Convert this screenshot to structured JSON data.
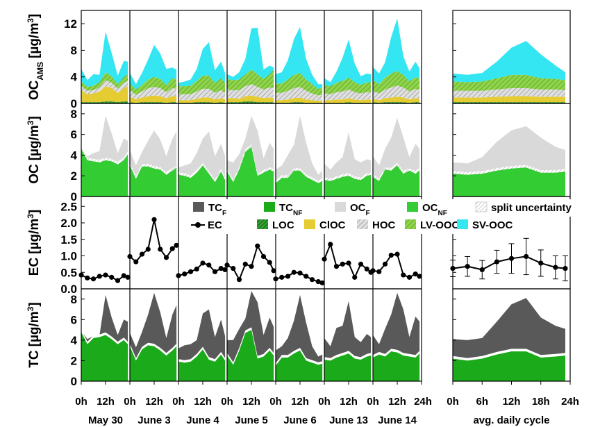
{
  "chart_data": {
    "type": "area",
    "colors": {
      "TC_F": "#595959",
      "TC_NF": "#1aaa1a",
      "OC_F": "#d9d9d9",
      "OC_NF": "#33cc33",
      "EC": "#000000",
      "LOC": "#1f6b1f",
      "ClOC": "#e6cc33",
      "HOC": "#bfbfbf",
      "LVOOC": "#7ccc3a",
      "SVOOC": "#33e6f2",
      "uncertainty": "#f2f2f2"
    },
    "days": [
      "May 30",
      "June 3",
      "June 4",
      "June 5",
      "June 6",
      "June 13",
      "June 14"
    ],
    "cycle_label": "avg. daily cycle",
    "x_ticks_day": [
      "0h",
      "12h"
    ],
    "x_tick_last": "24h",
    "x_ticks_cycle": [
      "0h",
      "6h",
      "12h",
      "18h",
      "24h"
    ],
    "panels": [
      {
        "id": "oc_ams",
        "ylabel": "OC",
        "ylabel_sub": "AMS",
        "ylabel_unit": "[µg/m",
        "ylabel_sup": "3",
        "ylabel_close": "]",
        "ylim": [
          0,
          14
        ],
        "yticks": [
          "0",
          "4",
          "8",
          "12"
        ]
      },
      {
        "id": "oc",
        "ylabel": "OC",
        "ylabel_unit": "[µg/m",
        "ylabel_sup": "3",
        "ylabel_close": "]",
        "ylim": [
          0,
          9
        ],
        "yticks": [
          "0",
          "2",
          "4",
          "6",
          "8"
        ]
      },
      {
        "id": "ec",
        "ylabel": "EC",
        "ylabel_unit": "[µg/m",
        "ylabel_sup": "3",
        "ylabel_close": "]",
        "ylim": [
          0,
          2.8
        ],
        "yticks": [
          "0.0",
          "0.5",
          "1.0",
          "1.5",
          "2.0",
          "2.5"
        ]
      },
      {
        "id": "tc",
        "ylabel": "TC",
        "ylabel_unit": "[µg/m",
        "ylabel_sup": "3",
        "ylabel_close": "]",
        "ylim": [
          0,
          9
        ],
        "yticks": [
          "0",
          "2",
          "4",
          "6",
          "8"
        ]
      }
    ],
    "legend": [
      {
        "key": "TC_F",
        "main": "TC",
        "sub": "F",
        "style": "fill"
      },
      {
        "key": "TC_NF",
        "main": "TC",
        "sub": "NF",
        "style": "fill"
      },
      {
        "key": "OC_F",
        "main": "OC",
        "sub": "F",
        "style": "fill"
      },
      {
        "key": "OC_NF",
        "main": "OC",
        "sub": "NF",
        "style": "fill"
      },
      {
        "key": "uncertainty",
        "main": "split uncertainty",
        "sub": "",
        "style": "hatch"
      },
      {
        "key": "EC",
        "main": "EC",
        "sub": "",
        "style": "line"
      },
      {
        "key": "LOC",
        "main": "LOC",
        "sub": "",
        "style": "hatch-dark"
      },
      {
        "key": "ClOC",
        "main": "ClOC",
        "sub": "",
        "style": "fill"
      },
      {
        "key": "HOC",
        "main": "HOC",
        "sub": "",
        "style": "hatch"
      },
      {
        "key": "LVOOC",
        "main": "LV-OOC",
        "sub": "",
        "style": "hatch-green"
      },
      {
        "key": "SVOOC",
        "main": "SV-OOC",
        "sub": "",
        "style": "fill"
      }
    ],
    "day_x_hours": [
      0,
      3,
      6,
      9,
      12,
      15,
      18,
      21,
      23
    ],
    "daily": [
      {
        "day": "May 30",
        "TC_NF": [
          4.8,
          3.6,
          4.2,
          4.3,
          4.5,
          4.1,
          3.6,
          4.0,
          3.6
        ],
        "TC_total": [
          4.9,
          4.1,
          4.4,
          4.5,
          8.4,
          6.2,
          4.5,
          6.0,
          5.8
        ],
        "OC_NF": [
          4.6,
          3.5,
          3.4,
          3.3,
          3.5,
          3.4,
          3.1,
          3.5,
          4.1
        ],
        "OC_total": [
          4.7,
          3.9,
          4.2,
          4.4,
          7.8,
          6.1,
          4.2,
          5.6,
          5.4
        ],
        "EC": [
          0.42,
          0.33,
          0.3,
          0.38,
          0.42,
          0.35,
          0.25,
          0.4,
          0.35
        ],
        "LOC": [
          0.2,
          0.2,
          0.2,
          0.2,
          0.3,
          0.3,
          0.2,
          0.3,
          0.3
        ],
        "ClOC": [
          1.8,
          1.2,
          1.3,
          1.6,
          2.3,
          2.0,
          1.4,
          2.0,
          2.3
        ],
        "HOC": [
          0.6,
          0.5,
          0.5,
          0.6,
          0.9,
          0.8,
          0.6,
          0.8,
          0.8
        ],
        "LVOOC": [
          0.7,
          0.6,
          0.7,
          0.8,
          1.2,
          1.0,
          0.7,
          0.9,
          1.0
        ],
        "SVOOC": [
          1.9,
          1.0,
          1.7,
          1.1,
          6.1,
          3.5,
          1.3,
          2.4,
          1.9
        ]
      },
      {
        "day": "June 3",
        "TC_NF": [
          3.4,
          2.0,
          3.1,
          3.5,
          3.4,
          3.0,
          2.5,
          3.0,
          3.4
        ],
        "TC_total": [
          4.7,
          3.3,
          4.8,
          6.5,
          8.6,
          6.7,
          4.2,
          6.5,
          7.4
        ],
        "OC_NF": [
          3.0,
          1.7,
          2.9,
          2.9,
          2.7,
          2.6,
          2.1,
          2.5,
          2.8
        ],
        "OC_total": [
          4.5,
          3.0,
          4.3,
          5.4,
          6.4,
          5.5,
          3.9,
          5.6,
          6.3
        ],
        "EC": [
          0.98,
          0.82,
          1.05,
          1.2,
          2.1,
          1.2,
          0.95,
          1.22,
          1.32
        ],
        "LOC": [
          0.2,
          0.1,
          0.2,
          0.2,
          0.2,
          0.2,
          0.1,
          0.2,
          0.2
        ],
        "ClOC": [
          0.8,
          0.5,
          0.7,
          0.9,
          1.0,
          0.9,
          0.7,
          0.9,
          0.9
        ],
        "HOC": [
          1.0,
          0.7,
          0.9,
          1.2,
          1.3,
          1.2,
          0.9,
          1.2,
          1.1
        ],
        "LVOOC": [
          1.0,
          0.8,
          1.0,
          1.3,
          1.5,
          1.4,
          1.1,
          1.5,
          1.4
        ],
        "SVOOC": [
          1.6,
          0.8,
          1.8,
          3.0,
          4.8,
          3.8,
          2.4,
          1.6,
          1.5
        ]
      },
      {
        "day": "June 4",
        "TC_NF": [
          1.9,
          1.8,
          1.9,
          2.4,
          3.1,
          2.1,
          1.9,
          2.6,
          2.0
        ],
        "TC_total": [
          3.2,
          3.5,
          3.6,
          4.0,
          6.6,
          7.0,
          4.3,
          6.0,
          4.4
        ],
        "OC_NF": [
          2.1,
          2.0,
          1.8,
          2.3,
          3.0,
          2.2,
          1.4,
          2.4,
          1.6
        ],
        "OC_total": [
          2.8,
          3.0,
          3.2,
          4.2,
          5.6,
          6.3,
          3.9,
          5.1,
          3.9
        ],
        "EC": [
          0.4,
          0.45,
          0.52,
          0.6,
          0.78,
          0.72,
          0.52,
          0.62,
          0.58
        ],
        "LOC": [
          0.1,
          0.1,
          0.1,
          0.2,
          0.2,
          0.2,
          0.1,
          0.2,
          0.1
        ],
        "ClOC": [
          0.4,
          0.4,
          0.4,
          0.5,
          0.7,
          0.7,
          0.5,
          0.6,
          0.5
        ],
        "HOC": [
          0.9,
          0.9,
          0.9,
          1.1,
          1.3,
          1.3,
          1.0,
          1.2,
          1.0
        ],
        "LVOOC": [
          1.2,
          1.2,
          1.3,
          1.6,
          2.0,
          2.0,
          1.5,
          1.8,
          1.5
        ],
        "SVOOC": [
          0.5,
          0.7,
          0.9,
          1.8,
          4.0,
          5.0,
          1.9,
          2.5,
          1.5
        ]
      },
      {
        "day": "June 5",
        "TC_NF": [
          2.5,
          1.6,
          3.0,
          4.7,
          5.0,
          2.2,
          2.4,
          3.0,
          2.5
        ],
        "TC_total": [
          4.0,
          4.0,
          5.1,
          6.1,
          8.8,
          7.7,
          4.5,
          6.2,
          5.3
        ],
        "OC_NF": [
          2.4,
          1.4,
          2.6,
          4.3,
          4.8,
          2.0,
          2.3,
          2.6,
          2.4
        ],
        "OC_total": [
          3.5,
          3.3,
          4.1,
          5.6,
          7.8,
          6.4,
          3.7,
          5.2,
          4.6
        ],
        "EC": [
          0.72,
          0.62,
          0.28,
          0.75,
          0.68,
          1.3,
          0.98,
          0.8,
          0.55
        ],
        "LOC": [
          0.2,
          0.2,
          0.2,
          0.3,
          0.3,
          0.2,
          0.2,
          0.2,
          0.2
        ],
        "ClOC": [
          0.6,
          0.6,
          0.5,
          0.8,
          0.9,
          0.8,
          0.6,
          0.7,
          0.6
        ],
        "HOC": [
          1.3,
          1.2,
          1.3,
          1.5,
          1.7,
          1.5,
          1.3,
          1.5,
          1.5
        ],
        "LVOOC": [
          1.6,
          1.5,
          1.6,
          1.8,
          2.2,
          1.9,
          1.6,
          2.0,
          2.8
        ],
        "SVOOC": [
          0.7,
          0.5,
          1.1,
          2.3,
          6.2,
          7.0,
          1.4,
          1.3,
          0.3
        ]
      },
      {
        "day": "June 6",
        "TC_NF": [
          1.5,
          2.3,
          2.3,
          2.7,
          3.0,
          2.0,
          1.8,
          1.6,
          1.7
        ],
        "TC_total": [
          3.0,
          3.4,
          4.2,
          5.9,
          8.4,
          5.7,
          3.4,
          2.4,
          2.6
        ],
        "OC_NF": [
          1.3,
          1.8,
          1.8,
          2.5,
          2.5,
          1.9,
          1.6,
          1.3,
          1.5
        ],
        "OC_total": [
          2.6,
          3.0,
          4.0,
          5.0,
          7.8,
          5.2,
          3.2,
          2.1,
          2.5
        ],
        "EC": [
          0.3,
          0.35,
          0.38,
          0.5,
          0.48,
          0.38,
          0.28,
          0.22,
          0.18
        ],
        "LOC": [
          0.1,
          0.1,
          0.1,
          0.2,
          0.2,
          0.1,
          0.1,
          0.1,
          0.1
        ],
        "ClOC": [
          0.4,
          0.4,
          0.5,
          0.6,
          0.7,
          0.5,
          0.4,
          0.3,
          0.3
        ],
        "HOC": [
          1.1,
          1.1,
          1.3,
          1.5,
          1.6,
          1.3,
          1.0,
          0.8,
          0.9
        ],
        "LVOOC": [
          1.4,
          1.4,
          1.7,
          2.0,
          2.1,
          1.7,
          1.4,
          1.0,
          1.1
        ],
        "SVOOC": [
          1.4,
          1.7,
          2.9,
          5.4,
          6.9,
          3.1,
          1.4,
          0.7,
          0.5
        ]
      },
      {
        "day": "June 13",
        "TC_NF": [
          2.1,
          2.0,
          2.3,
          2.5,
          2.7,
          2.2,
          2.1,
          2.4,
          2.5
        ],
        "TC_total": [
          4.2,
          3.4,
          5.2,
          5.4,
          7.8,
          4.3,
          3.8,
          4.6,
          4.3
        ],
        "OC_NF": [
          1.6,
          1.5,
          1.7,
          1.9,
          2.0,
          1.7,
          1.6,
          2.0,
          2.1
        ],
        "OC_total": [
          3.2,
          2.6,
          3.3,
          3.8,
          6.2,
          3.6,
          3.3,
          3.6,
          3.5
        ],
        "EC": [
          0.9,
          1.35,
          0.68,
          0.75,
          0.78,
          0.35,
          0.75,
          0.6,
          0.5
        ],
        "LOC": [
          0.1,
          0.1,
          0.1,
          0.1,
          0.2,
          0.1,
          0.1,
          0.1,
          0.1
        ],
        "ClOC": [
          0.4,
          0.4,
          0.5,
          0.5,
          0.6,
          0.5,
          0.4,
          0.5,
          0.5
        ],
        "HOC": [
          1.0,
          0.9,
          1.1,
          1.2,
          1.3,
          1.1,
          1.0,
          1.1,
          1.1
        ],
        "LVOOC": [
          1.3,
          1.2,
          1.4,
          1.6,
          1.8,
          1.5,
          1.3,
          1.5,
          1.5
        ],
        "SVOOC": [
          1.0,
          0.6,
          1.7,
          3.5,
          5.7,
          2.8,
          1.3,
          1.3,
          1.2
        ]
      },
      {
        "day": "June 14",
        "TC_NF": [
          2.3,
          2.6,
          2.4,
          2.9,
          2.8,
          2.5,
          2.4,
          2.3,
          2.7
        ],
        "TC_total": [
          4.5,
          3.6,
          5.1,
          6.5,
          8.6,
          7.0,
          4.3,
          6.3,
          5.8
        ],
        "OC_NF": [
          1.9,
          1.5,
          2.6,
          2.5,
          3.0,
          2.2,
          2.5,
          2.2,
          2.5
        ],
        "OC_total": [
          3.9,
          3.0,
          4.6,
          5.7,
          7.6,
          5.7,
          3.8,
          5.1,
          4.6
        ],
        "EC": [
          0.55,
          0.52,
          0.75,
          1.02,
          1.05,
          0.42,
          0.35,
          0.45,
          0.38
        ],
        "LOC": [
          0.2,
          0.1,
          0.2,
          0.2,
          0.2,
          0.2,
          0.1,
          0.2,
          0.2
        ],
        "ClOC": [
          0.5,
          0.4,
          0.6,
          0.7,
          0.8,
          0.7,
          0.5,
          0.6,
          0.5
        ],
        "HOC": [
          1.2,
          1.0,
          1.3,
          1.5,
          1.7,
          1.5,
          1.2,
          1.4,
          1.3
        ],
        "LVOOC": [
          1.6,
          1.4,
          1.8,
          2.1,
          2.2,
          1.9,
          1.5,
          1.8,
          1.7
        ],
        "SVOOC": [
          2.0,
          1.6,
          2.3,
          5.5,
          7.9,
          2.8,
          1.5,
          2.3,
          1.6
        ]
      }
    ],
    "cycle": {
      "x_hours": [
        0,
        3,
        6,
        9,
        12,
        15,
        18,
        21,
        23
      ],
      "TC_NF": [
        2.2,
        2.0,
        2.2,
        2.6,
        2.9,
        2.9,
        2.3,
        2.4,
        2.5
      ],
      "TC_total": [
        4.1,
        4.0,
        4.2,
        5.8,
        7.5,
        8.1,
        6.2,
        5.4,
        5.1
      ],
      "OC_NF": [
        2.2,
        2.1,
        2.2,
        2.5,
        2.7,
        2.8,
        2.3,
        2.3,
        2.4
      ],
      "OC_total": [
        3.3,
        3.2,
        3.8,
        5.3,
        6.4,
        6.8,
        5.7,
        4.8,
        4.5
      ],
      "EC": [
        0.62,
        0.68,
        0.58,
        0.82,
        0.92,
        0.98,
        0.78,
        0.65,
        0.62
      ],
      "EC_err": [
        0.25,
        0.3,
        0.28,
        0.35,
        0.45,
        0.55,
        0.4,
        0.35,
        0.38
      ],
      "LOC": [
        0.2,
        0.2,
        0.2,
        0.2,
        0.2,
        0.2,
        0.2,
        0.2,
        0.2
      ],
      "ClOC": [
        0.7,
        0.7,
        0.7,
        0.8,
        0.9,
        0.9,
        0.8,
        0.8,
        0.8
      ],
      "HOC": [
        1.0,
        1.0,
        1.0,
        1.1,
        1.2,
        1.2,
        1.1,
        1.1,
        1.0
      ],
      "LVOOC": [
        1.4,
        1.3,
        1.4,
        1.7,
        2.0,
        2.0,
        1.7,
        1.6,
        1.5
      ],
      "SVOOC": [
        1.2,
        1.1,
        1.3,
        2.5,
        4.1,
        5.1,
        3.6,
        2.0,
        1.2
      ]
    }
  }
}
